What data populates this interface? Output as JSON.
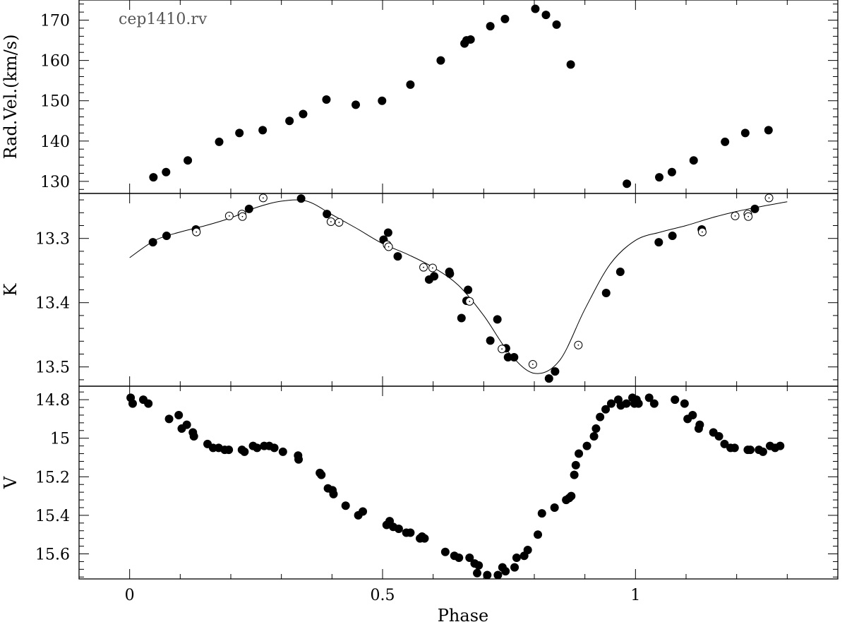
{
  "chart_data": [
    {
      "panel": "rv",
      "type": "scatter",
      "annotation": "cep1410.rv",
      "xlabel": "",
      "ylabel": "Rad.Vel.(km/s)",
      "xlim": [
        -0.1,
        1.4
      ],
      "ylim": [
        127,
        175
      ],
      "yticks": [
        130,
        140,
        150,
        160,
        170
      ],
      "y_inverted": false,
      "series": [
        {
          "marker": "filled",
          "x": [
            0.047,
            0.072,
            0.115,
            0.177,
            0.217,
            0.263,
            0.316,
            0.343,
            0.389,
            0.447,
            0.499,
            0.555,
            0.615,
            0.662,
            0.666,
            0.674,
            0.713,
            0.742,
            0.802,
            0.823,
            0.844,
            0.872,
            0.983,
            1.047,
            1.072,
            1.115,
            1.177,
            1.217,
            1.263
          ],
          "y": [
            131,
            132.3,
            135.2,
            139.8,
            142,
            142.7,
            145,
            146.7,
            150.3,
            149,
            150,
            154,
            160,
            164.2,
            165,
            165.2,
            168.5,
            170.3,
            172.8,
            171.3,
            168.9,
            159,
            129.4,
            131,
            132.3,
            135.2,
            139.8,
            142,
            142.7
          ]
        }
      ]
    },
    {
      "panel": "K",
      "type": "scatter",
      "xlabel": "",
      "ylabel": "K",
      "xlim": [
        -0.1,
        1.4
      ],
      "ylim": [
        13.23,
        13.53
      ],
      "yticks": [
        13.3,
        13.4,
        13.5
      ],
      "y_inverted": true,
      "series": [
        {
          "marker": "filled",
          "x": [
            0.046,
            0.073,
            0.131,
            0.236,
            0.339,
            0.39,
            0.502,
            0.511,
            0.53,
            0.592,
            0.602,
            0.632,
            0.633,
            0.656,
            0.666,
            0.669,
            0.713,
            0.727,
            0.744,
            0.748,
            0.76,
            0.829,
            0.841,
            0.942,
            0.97,
            1.046,
            1.073,
            1.131,
            1.236
          ],
          "y": [
            13.306,
            13.296,
            13.286,
            13.254,
            13.238,
            13.262,
            13.302,
            13.291,
            13.328,
            13.364,
            13.359,
            13.352,
            13.355,
            13.424,
            13.397,
            13.38,
            13.459,
            13.426,
            13.471,
            13.485,
            13.485,
            13.518,
            13.507,
            13.385,
            13.352,
            13.306,
            13.296,
            13.286,
            13.254
          ]
        },
        {
          "marker": "open",
          "x": [
            0.132,
            0.197,
            0.222,
            0.223,
            0.264,
            0.398,
            0.414,
            0.509,
            0.512,
            0.581,
            0.599,
            0.672,
            0.736,
            0.797,
            0.887,
            1.132,
            1.197,
            1.222,
            1.223,
            1.264
          ],
          "y": [
            13.29,
            13.265,
            13.262,
            13.266,
            13.237,
            13.274,
            13.275,
            13.31,
            13.313,
            13.345,
            13.346,
            13.398,
            13.472,
            13.496,
            13.466,
            13.29,
            13.265,
            13.262,
            13.266,
            13.237
          ]
        }
      ],
      "fit_curve": {
        "x": [
          0.0,
          0.05,
          0.1,
          0.15,
          0.2,
          0.25,
          0.3,
          0.35,
          0.4,
          0.45,
          0.5,
          0.55,
          0.6,
          0.65,
          0.7,
          0.75,
          0.8,
          0.85,
          0.9,
          0.95,
          1.0,
          1.05,
          1.1,
          1.15,
          1.2,
          1.25,
          1.3
        ],
        "y": [
          13.33,
          13.303,
          13.29,
          13.28,
          13.268,
          13.252,
          13.242,
          13.242,
          13.263,
          13.285,
          13.308,
          13.325,
          13.345,
          13.373,
          13.42,
          13.478,
          13.51,
          13.49,
          13.41,
          13.34,
          13.303,
          13.29,
          13.28,
          13.268,
          13.258,
          13.25,
          13.243
        ]
      }
    },
    {
      "panel": "V",
      "type": "scatter",
      "xlabel": "Phase",
      "ylabel": "V",
      "xlim": [
        -0.1,
        1.4
      ],
      "ylim": [
        14.73,
        15.73
      ],
      "yticks": [
        14.8,
        15,
        15.2,
        15.4,
        15.6
      ],
      "ytick_labels": [
        "14.8",
        "15",
        "15.2",
        "15.4",
        "15.6"
      ],
      "y_inverted": true,
      "xticks": [
        0,
        0.5,
        1
      ],
      "xtick_labels": [
        "0",
        "0.5",
        "1"
      ],
      "series": [
        {
          "marker": "filled",
          "x": [
            0.002,
            0.006,
            0.027,
            0.037,
            0.078,
            0.097,
            0.103,
            0.113,
            0.125,
            0.127,
            0.154,
            0.165,
            0.176,
            0.188,
            0.196,
            0.222,
            0.227,
            0.244,
            0.252,
            0.266,
            0.276,
            0.286,
            0.303,
            0.333,
            0.334,
            0.376,
            0.379,
            0.392,
            0.401,
            0.403,
            0.427,
            0.452,
            0.461,
            0.508,
            0.514,
            0.521,
            0.532,
            0.547,
            0.555,
            0.574,
            0.578,
            0.583,
            0.624,
            0.642,
            0.651,
            0.672,
            0.682,
            0.687,
            0.69,
            0.707,
            0.728,
            0.737,
            0.743,
            0.761,
            0.765,
            0.78,
            0.787,
            0.807,
            0.815,
            0.84,
            0.863,
            0.869,
            0.873,
            0.879,
            0.882,
            0.888,
            0.904,
            0.918,
            0.922,
            0.93,
            0.941,
            0.952,
            0.966,
            0.971,
            0.982,
            0.994,
            0.998,
            1.002,
            1.006,
            1.027,
            1.037,
            1.078,
            1.097,
            1.103,
            1.113,
            1.125,
            1.127,
            1.154,
            1.165,
            1.176,
            1.188,
            1.196,
            1.222,
            1.227,
            1.244,
            1.252,
            1.266,
            1.276,
            1.286
          ],
          "y": [
            14.79,
            14.82,
            14.8,
            14.82,
            14.9,
            14.88,
            14.95,
            14.93,
            14.97,
            14.99,
            15.03,
            15.05,
            15.05,
            15.06,
            15.06,
            15.06,
            15.07,
            15.04,
            15.05,
            15.04,
            15.04,
            15.05,
            15.07,
            15.09,
            15.11,
            15.18,
            15.19,
            15.26,
            15.27,
            15.29,
            15.35,
            15.4,
            15.38,
            15.45,
            15.43,
            15.46,
            15.47,
            15.49,
            15.49,
            15.52,
            15.51,
            15.52,
            15.59,
            15.61,
            15.62,
            15.62,
            15.65,
            15.7,
            15.66,
            15.71,
            15.71,
            15.67,
            15.69,
            15.67,
            15.62,
            15.61,
            15.58,
            15.5,
            15.39,
            15.36,
            15.32,
            15.31,
            15.3,
            15.19,
            15.14,
            15.08,
            15.04,
            14.99,
            14.95,
            14.89,
            14.85,
            14.82,
            14.8,
            14.83,
            14.82,
            14.79,
            14.82,
            14.8,
            14.82,
            14.79,
            14.82,
            14.8,
            14.82,
            14.9,
            14.88,
            14.95,
            14.93,
            14.97,
            14.99,
            15.03,
            15.05,
            15.05,
            15.06,
            15.06,
            15.06,
            15.07,
            15.04,
            15.05,
            15.04
          ]
        }
      ]
    }
  ]
}
